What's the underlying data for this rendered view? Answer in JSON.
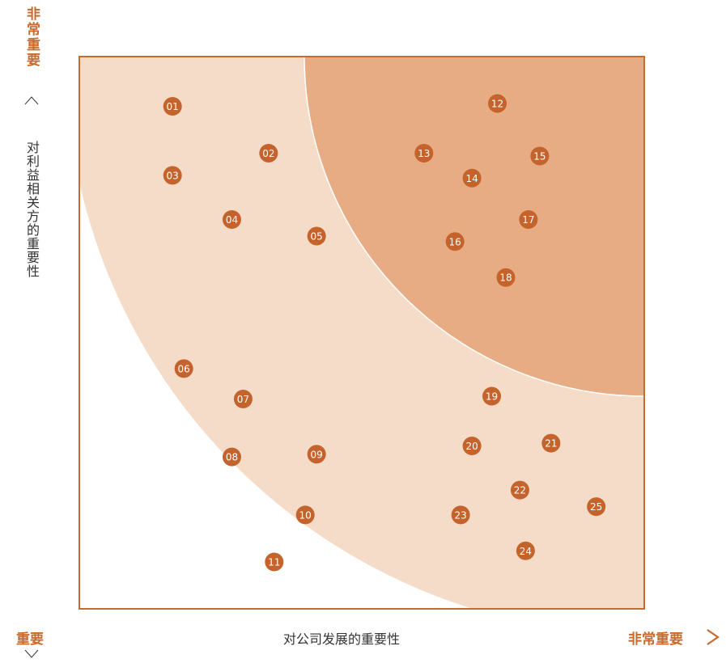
{
  "colors": {
    "frame": "#c86a2e",
    "zone_important": "#f5dcc9",
    "zone_very_important": "#e7ac84",
    "dot": "#c4632b",
    "dot_text": "#ffffff",
    "axis_text_accent": "#c86a2e",
    "axis_text": "#333333"
  },
  "labels": {
    "y_high": "非常重要",
    "y_title": "对利益相关方的重要性",
    "x_low": "重要",
    "x_title": "对公司发展的重要性",
    "x_high": "非常重要"
  },
  "icons": {
    "y_up": "chevron-up-icon",
    "x_low_down": "chevron-down-icon",
    "x_right": "chevron-right-icon"
  },
  "chart_data": {
    "type": "scatter",
    "title": "",
    "xlabel": "对公司发展的重要性",
    "ylabel": "对利益相关方的重要性",
    "xlim": [
      0,
      100
    ],
    "ylim": [
      0,
      100
    ],
    "grid": false,
    "zones": [
      {
        "label": "",
        "level": "important"
      },
      {
        "label": "",
        "level": "very-important"
      }
    ],
    "points": [
      {
        "label": "01",
        "x": 16.5,
        "y": 91.0
      },
      {
        "label": "02",
        "x": 33.5,
        "y": 82.5
      },
      {
        "label": "03",
        "x": 16.5,
        "y": 78.5
      },
      {
        "label": "04",
        "x": 27.0,
        "y": 70.5
      },
      {
        "label": "05",
        "x": 42.0,
        "y": 67.5
      },
      {
        "label": "06",
        "x": 18.5,
        "y": 43.5
      },
      {
        "label": "07",
        "x": 29.0,
        "y": 38.0
      },
      {
        "label": "08",
        "x": 27.0,
        "y": 27.5
      },
      {
        "label": "09",
        "x": 42.0,
        "y": 28.0
      },
      {
        "label": "10",
        "x": 40.0,
        "y": 17.0
      },
      {
        "label": "11",
        "x": 34.5,
        "y": 8.5
      },
      {
        "label": "12",
        "x": 74.0,
        "y": 91.5
      },
      {
        "label": "13",
        "x": 61.0,
        "y": 82.5
      },
      {
        "label": "14",
        "x": 69.5,
        "y": 78.0
      },
      {
        "label": "15",
        "x": 81.5,
        "y": 82.0
      },
      {
        "label": "16",
        "x": 66.5,
        "y": 66.5
      },
      {
        "label": "17",
        "x": 79.5,
        "y": 70.5
      },
      {
        "label": "18",
        "x": 75.5,
        "y": 60.0
      },
      {
        "label": "19",
        "x": 73.0,
        "y": 38.5
      },
      {
        "label": "20",
        "x": 69.5,
        "y": 29.5
      },
      {
        "label": "21",
        "x": 83.5,
        "y": 30.0
      },
      {
        "label": "22",
        "x": 78.0,
        "y": 21.5
      },
      {
        "label": "23",
        "x": 67.5,
        "y": 17.0
      },
      {
        "label": "24",
        "x": 79.0,
        "y": 10.5
      },
      {
        "label": "25",
        "x": 91.5,
        "y": 18.5
      }
    ]
  }
}
